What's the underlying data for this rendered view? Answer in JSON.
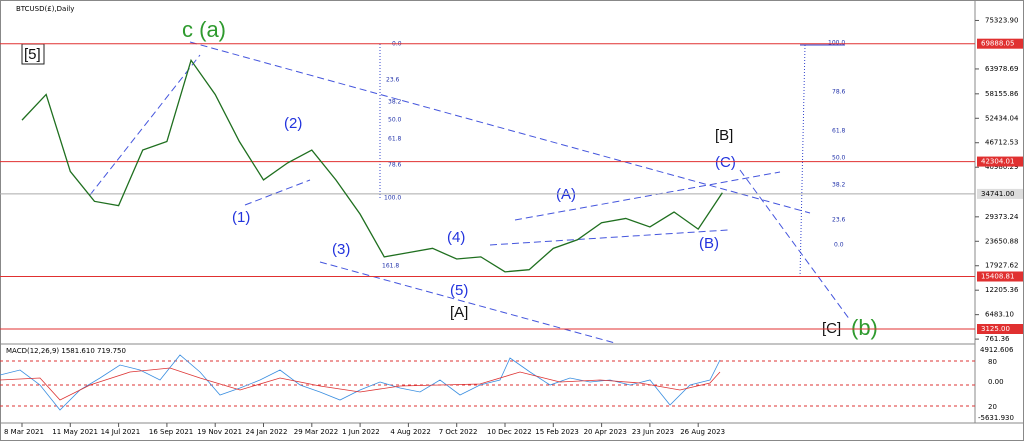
{
  "chart_data": {
    "type": "line",
    "title": "BTCUSD(£),Daily",
    "categories": [
      "8 Mar 2021",
      null,
      "11 May 2021",
      null,
      "14 Jul 2021",
      null,
      "16 Sep 2021",
      null,
      "19 Nov 2021",
      null,
      "24 Jan 2022",
      null,
      "29 Mar 2022",
      null,
      "1 Jun 2022",
      null,
      "4 Aug 2022",
      null,
      "7 Oct 2022",
      null,
      "10 Dec 2022",
      null,
      "15 Feb 2023",
      null,
      "20 Apr 2023",
      null,
      "23 Jun 2023",
      null,
      "26 Aug 2023",
      null
    ],
    "series": [
      {
        "name": "BTCUSD",
        "color": "#1f6f1f",
        "values": [
          52000,
          58000,
          40000,
          33000,
          32000,
          45000,
          47000,
          66000,
          58000,
          47000,
          38000,
          42000,
          45000,
          38000,
          30000,
          20000,
          21000,
          22000,
          19500,
          20000,
          16500,
          17000,
          22000,
          24000,
          28000,
          29000,
          27000,
          30500,
          26500,
          35000
        ]
      }
    ],
    "ylim": [
      317,
      78239
    ],
    "yticks": [
      {
        "value": 75323.9,
        "label": "75323.90"
      },
      {
        "value": 63978.69,
        "label": "63978.69"
      },
      {
        "value": 58155.86,
        "label": "58155.86"
      },
      {
        "value": 52434.04,
        "label": "52434.04"
      },
      {
        "value": 46712.53,
        "label": "46712.53"
      },
      {
        "value": 40980.29,
        "label": "40980.29"
      },
      {
        "value": 29373.24,
        "label": "29373.24"
      },
      {
        "value": 23650.88,
        "label": "23650.88"
      },
      {
        "value": 17927.62,
        "label": "17927.62"
      },
      {
        "value": 12205.36,
        "label": "12205.36"
      },
      {
        "value": 6483.1,
        "label": "6483.10"
      },
      {
        "value": 761.36,
        "label": "761.36"
      }
    ],
    "levels": [
      {
        "value": 69888.05,
        "label": "69888.05"
      },
      {
        "value": 42304.01,
        "label": "42304.01"
      },
      {
        "value": 34741,
        "label": "34741.00"
      },
      {
        "value": 15408.81,
        "label": "15408.81"
      },
      {
        "value": 3125,
        "label": "3125.00"
      }
    ],
    "level_color": "#e03030",
    "annotations": [
      "[5]",
      "c (a)",
      "(2)",
      "(1)",
      "(3)",
      "(4)",
      "(5)",
      "[A]",
      "(A)",
      "[B]",
      "(C)",
      "(B)",
      "[C]",
      "(b)"
    ],
    "fib_left": [
      "0.0",
      "23.6",
      "38.2",
      "50.0",
      "61.8",
      "78.6",
      "100.0",
      "161.8"
    ],
    "fib_right": [
      "100.0",
      "78.6",
      "61.8",
      "50.0",
      "38.2",
      "23.6",
      "0.0"
    ],
    "indicator": {
      "title": "MACD(12,26,9) 1581.610 719.750",
      "labels": [
        "4912.606",
        "80",
        "0.00",
        "20",
        "-5631.930"
      ]
    }
  }
}
